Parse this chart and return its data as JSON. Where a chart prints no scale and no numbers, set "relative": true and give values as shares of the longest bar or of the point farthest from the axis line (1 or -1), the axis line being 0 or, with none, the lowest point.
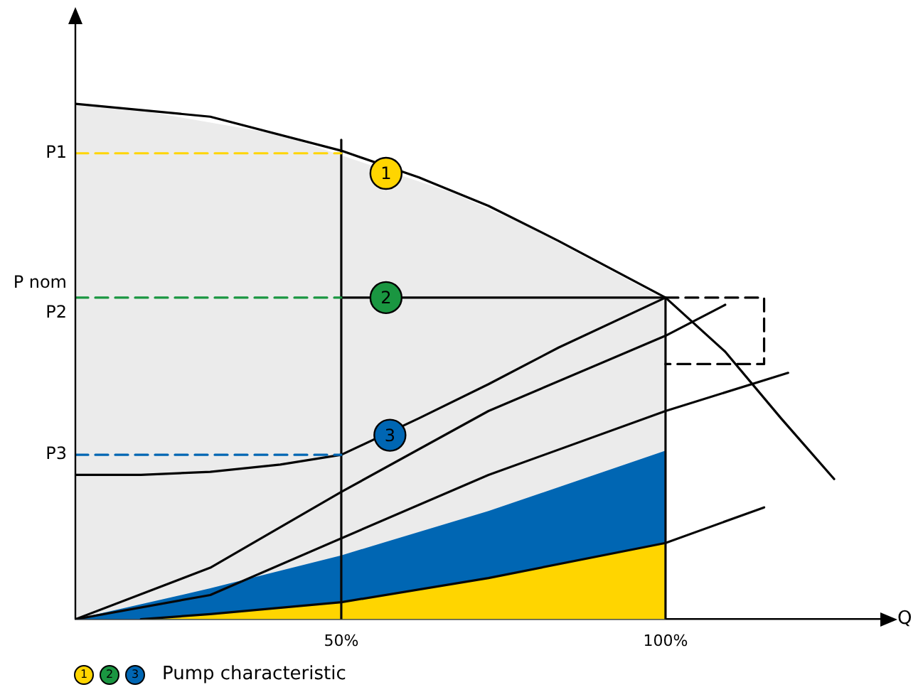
{
  "chart_data": {
    "type": "line",
    "relative": true,
    "xlabel": "Q",
    "xlim": [
      9,
      134
    ],
    "xticks": [
      {
        "value": 50,
        "label": "50%"
      },
      {
        "value": 100,
        "label": "100%"
      }
    ],
    "marker": "none",
    "line_style": "solid",
    "legend": false,
    "series": [
      {
        "color": "#ffd500",
        "line_style": "dashed",
        "x": [
          9,
          50
        ],
        "values": [
          0.904,
          0.904
        ]
      },
      {
        "color": "#1a9641",
        "line_style": "dashed",
        "x": [
          9,
          50
        ],
        "values": [
          0.624,
          0.624
        ]
      },
      {
        "color": "#0066b3",
        "line_style": "dashed",
        "x": [
          9,
          50
        ],
        "values": [
          0.319,
          0.319
        ]
      },
      {
        "type": "line",
        "color": "#000000",
        "line_style": "dashed",
        "x": [
          100,
          115.2,
          115.2,
          100
        ],
        "values": [
          0.624,
          0.624,
          0.495,
          0.495
        ]
      },
      {
        "type": "line",
        "color": "#010101",
        "x": [
          9,
          29.8,
          50,
          62,
          72.7,
          83.5,
          100,
          109.2,
          117.8,
          126
        ],
        "values": [
          1.0,
          0.975,
          0.909,
          0.857,
          0.802,
          0.734,
          0.624,
          0.519,
          0.39,
          0.272
        ]
      },
      {
        "type": "line",
        "color": "#030303",
        "x": [
          50,
          100
        ],
        "values": [
          0.624,
          0.624
        ]
      },
      {
        "type": "line",
        "color": "#040404",
        "x": [
          9,
          19.1,
          29.8,
          40.6,
          50,
          62,
          72.7,
          83.5,
          100
        ],
        "values": [
          0.28,
          0.28,
          0.286,
          0.3,
          0.319,
          0.39,
          0.456,
          0.527,
          0.624
        ]
      },
      {
        "type": "line",
        "color": "#050505",
        "x": [
          9,
          29.8,
          50,
          72.7,
          100,
          109.2
        ],
        "values": [
          0,
          0.1,
          0.247,
          0.404,
          0.55,
          0.61
        ]
      },
      {
        "type": "line",
        "color": "#060606",
        "x": [
          9,
          29.8,
          50,
          72.7,
          100,
          118.9
        ],
        "values": [
          0,
          0.047,
          0.157,
          0.28,
          0.404,
          0.478
        ]
      },
      {
        "type": "line",
        "color": "#070707",
        "x": [
          19.1,
          29.8,
          50,
          72.7,
          100,
          115.2
        ],
        "values": [
          0,
          0.01,
          0.033,
          0.08,
          0.148,
          0.217
        ]
      },
      {
        "type": "line",
        "color": "#080808",
        "x": [
          50,
          50
        ],
        "values": [
          0,
          0.93
        ]
      },
      {
        "type": "line",
        "color": "#090909",
        "x": [
          100,
          100
        ],
        "values": [
          0,
          0.624
        ]
      },
      {
        "type": "area",
        "color": "#ffd500",
        "x": [
          19.1,
          29.8,
          50,
          72.7,
          100
        ],
        "values": [
          0,
          0.01,
          0.033,
          0.08,
          0.148
        ]
      },
      {
        "type": "area",
        "color": "#0066b3",
        "x": [
          9,
          29.8,
          50,
          72.7,
          100
        ],
        "values": [
          0,
          0.06,
          0.124,
          0.21,
          0.327
        ]
      },
      {
        "type": "area",
        "color": "#ebebeb",
        "x": [
          9,
          19.1,
          40.6,
          56,
          67,
          78,
          91,
          100
        ],
        "values": [
          0.998,
          0.987,
          0.94,
          null,
          0.828,
          0.767,
          0.68,
          0.62
        ]
      }
    ],
    "annotations": [
      {
        "text": "P1",
        "x": 9,
        "y": 0.904
      },
      {
        "text": "P nom\nP2",
        "x": 9,
        "y": 0.624
      },
      {
        "text": "P3",
        "x": 9,
        "y": 0.319
      },
      {
        "text": "1",
        "x": 56.9,
        "y": 0.865
      },
      {
        "text": "2",
        "x": 56.9,
        "y": 0.624
      },
      {
        "text": "3",
        "x": 57.5,
        "y": 0.357
      },
      "Pump characteristic"
    ]
  }
}
